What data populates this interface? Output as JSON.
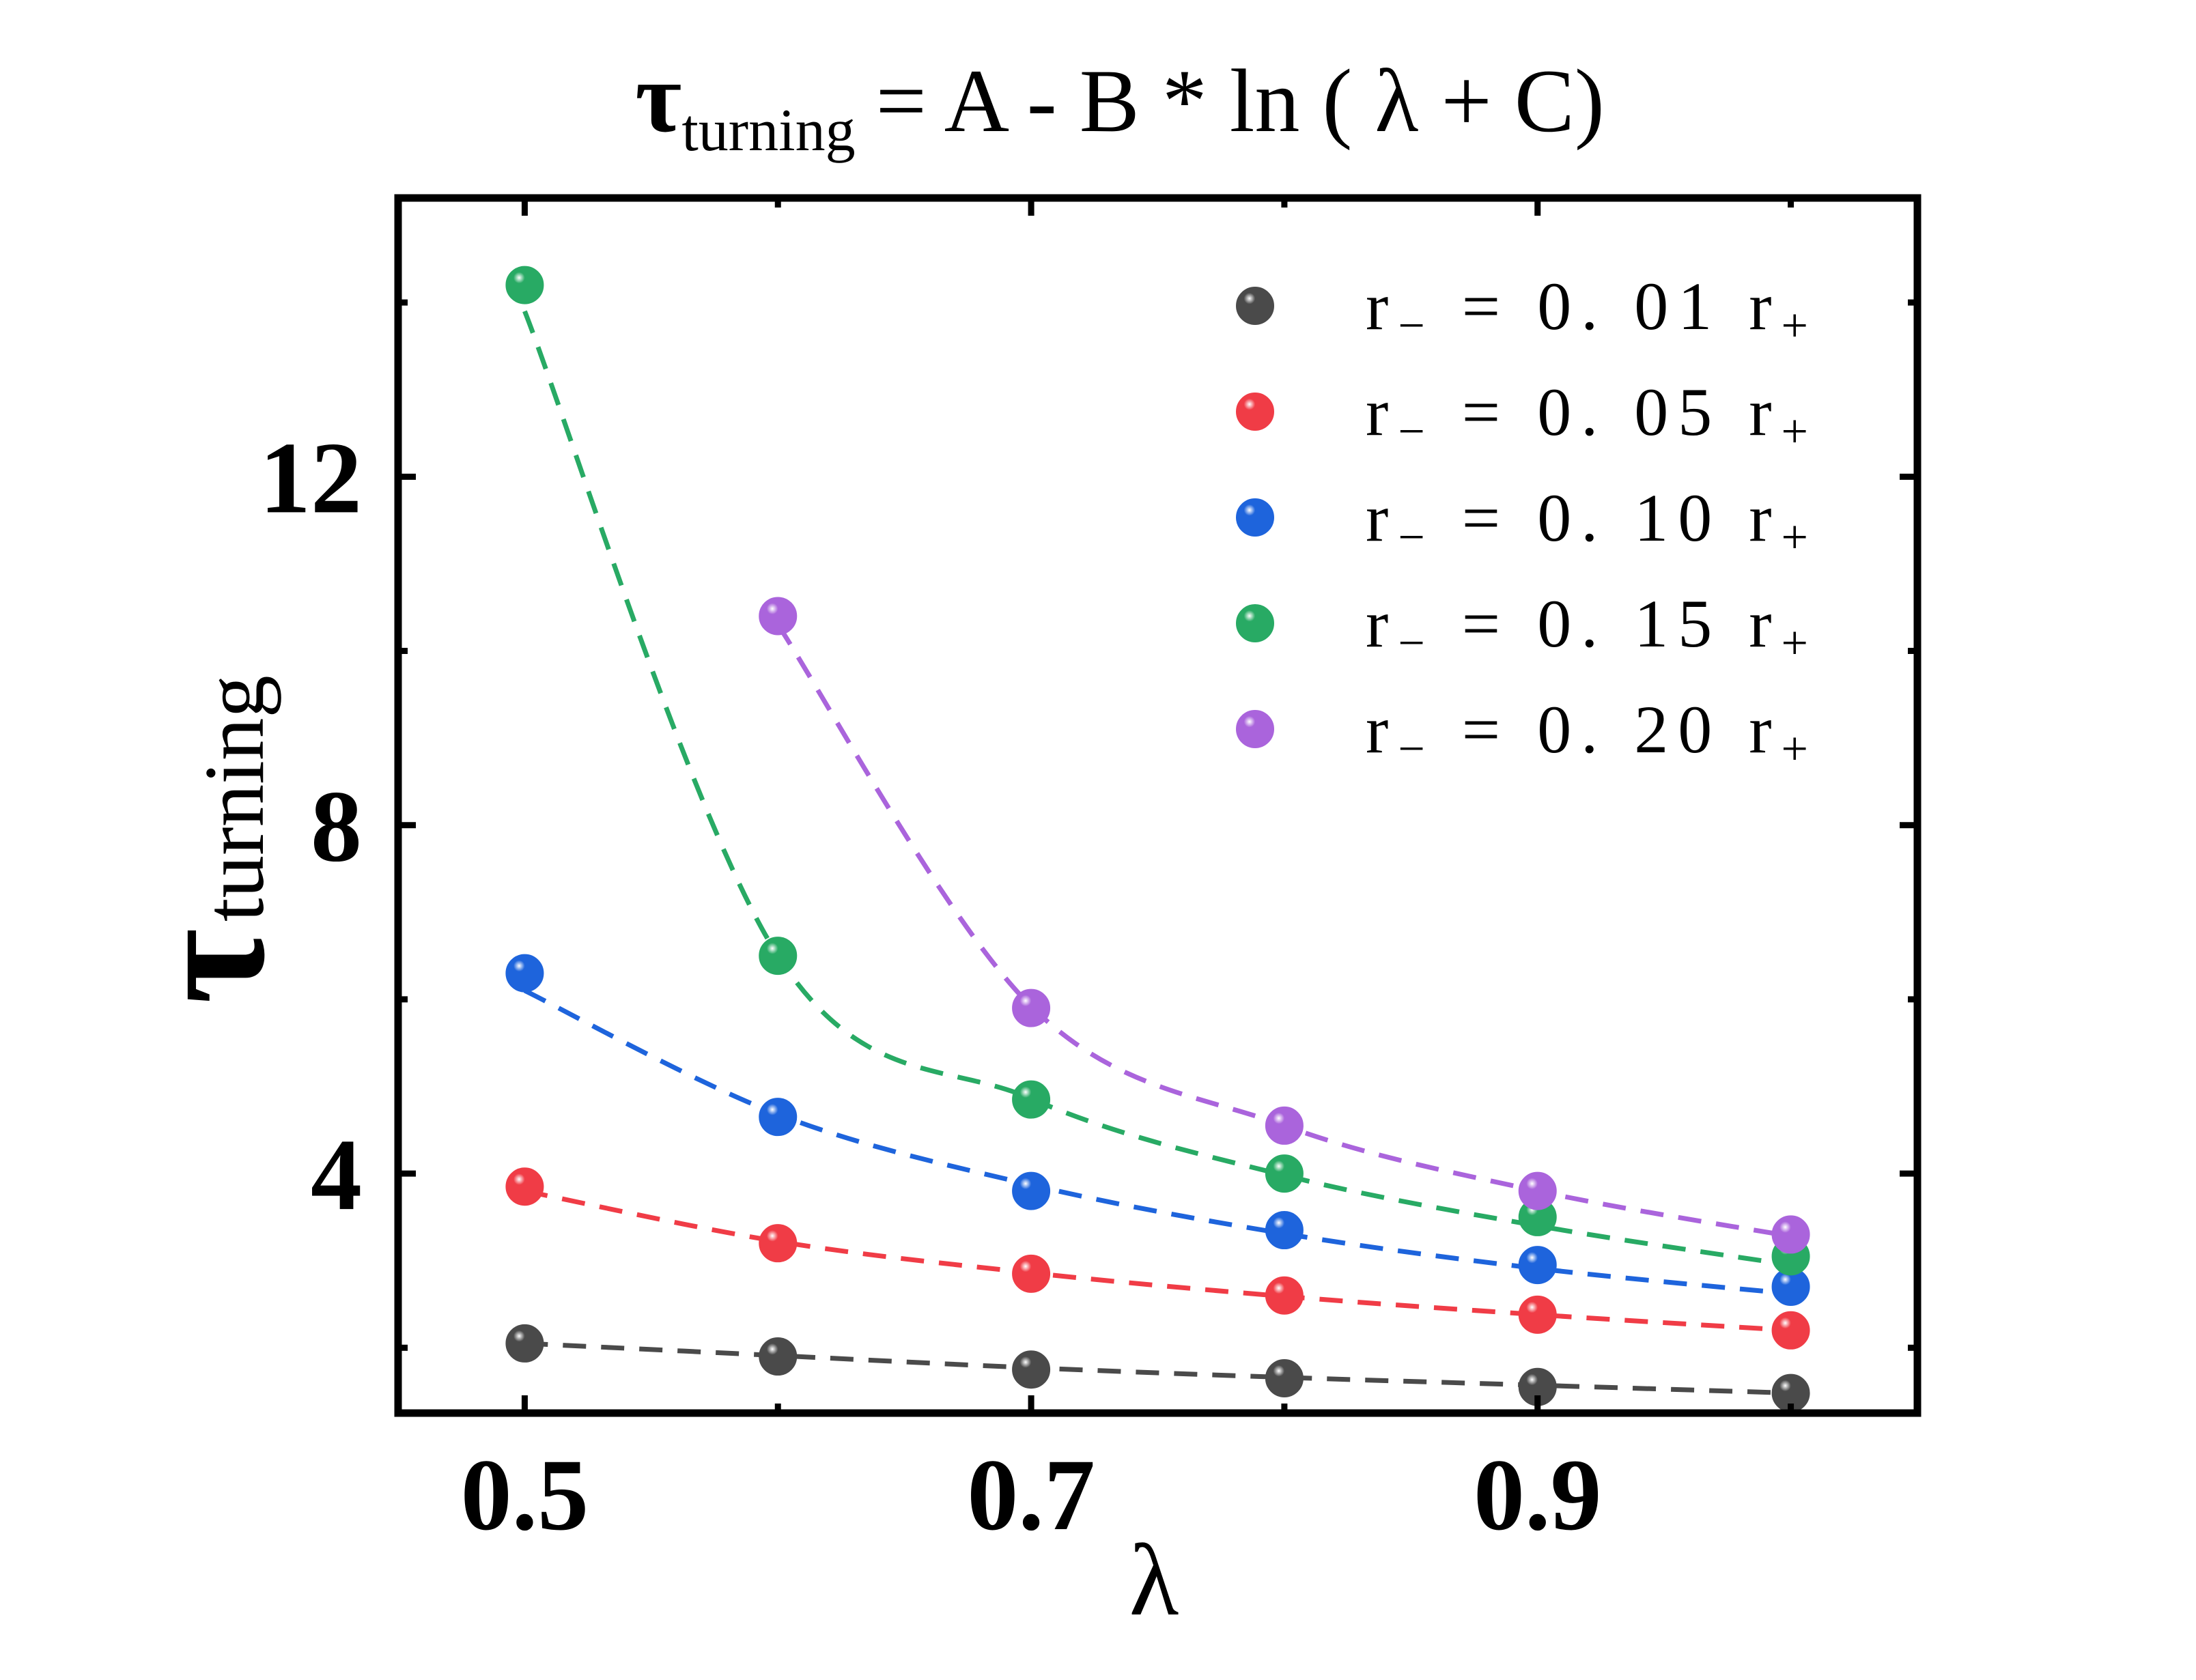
{
  "chart_data": {
    "type": "scatter",
    "title": {
      "symbol": "τ",
      "subscript": "turning",
      "equation": "= A - B * ln ( λ + C)"
    },
    "xlabel": "λ",
    "ylabel": {
      "symbol": "τ",
      "subscript": "turning"
    },
    "xlim": [
      0.45,
      1.05
    ],
    "ylim": [
      1.25,
      15.2
    ],
    "xticks": [
      0.5,
      0.7,
      0.9
    ],
    "xtick_labels": [
      "0.5",
      "0.7",
      "0.9"
    ],
    "yticks": [
      4,
      8,
      12
    ],
    "ytick_labels": [
      "4",
      "8",
      "12"
    ],
    "grid": false,
    "legend_position": "top-right",
    "fit_line_style": "dashed",
    "series": [
      {
        "name": "r₋ = 0.01 r₊",
        "legend_parts": {
          "r_minus": "r",
          "minus_sub": "−",
          "eq": "=",
          "value": "0. 01",
          "r_plus": "r",
          "plus_sub": "+"
        },
        "color": "#4a4a4a",
        "x": [
          0.5,
          0.6,
          0.7,
          0.8,
          0.9,
          1.0
        ],
        "y": [
          2.05,
          1.9,
          1.75,
          1.65,
          1.55,
          1.48
        ],
        "fit_y": [
          2.05,
          1.91,
          1.77,
          1.66,
          1.57,
          1.48
        ]
      },
      {
        "name": "r₋ = 0.05 r₊",
        "legend_parts": {
          "r_minus": "r",
          "minus_sub": "−",
          "eq": "=",
          "value": "0. 05",
          "r_plus": "r",
          "plus_sub": "+"
        },
        "color": "#f03c46",
        "x": [
          0.5,
          0.6,
          0.7,
          0.8,
          0.9,
          1.0
        ],
        "y": [
          3.85,
          3.2,
          2.85,
          2.6,
          2.38,
          2.2
        ],
        "fit_y": [
          3.8,
          3.22,
          2.86,
          2.59,
          2.38,
          2.2
        ]
      },
      {
        "name": "r₋ = 0.10 r₊",
        "legend_parts": {
          "r_minus": "r",
          "minus_sub": "−",
          "eq": "=",
          "value": "0. 10",
          "r_plus": "r",
          "plus_sub": "+"
        },
        "color": "#1e64dc",
        "x": [
          0.5,
          0.6,
          0.7,
          0.8,
          0.9,
          1.0
        ],
        "y": [
          6.3,
          4.65,
          3.8,
          3.35,
          2.95,
          2.7
        ],
        "fit_y": [
          6.1,
          4.68,
          3.87,
          3.31,
          2.91,
          2.62
        ]
      },
      {
        "name": "r₋ = 0.15 r₊",
        "legend_parts": {
          "r_minus": "r",
          "minus_sub": "−",
          "eq": "=",
          "value": "0. 15",
          "r_plus": "r",
          "plus_sub": "+"
        },
        "color": "#28aa64",
        "x": [
          0.5,
          0.6,
          0.7,
          0.8,
          0.9,
          1.0
        ],
        "y": [
          14.2,
          6.5,
          4.85,
          4.0,
          3.5,
          3.05
        ],
        "fit_y": [
          13.9,
          6.5,
          4.86,
          3.98,
          3.4,
          2.95
        ]
      },
      {
        "name": "r₋ = 0.20 r₊",
        "legend_parts": {
          "r_minus": "r",
          "minus_sub": "−",
          "eq": "=",
          "value": "0. 20",
          "r_plus": "r",
          "plus_sub": "+"
        },
        "color": "#aa64dc",
        "x": [
          0.6,
          0.7,
          0.8,
          0.9,
          1.0
        ],
        "y": [
          10.4,
          5.9,
          4.55,
          3.8,
          3.3
        ],
        "fit_y": [
          10.3,
          5.92,
          4.55,
          3.8,
          3.28
        ]
      }
    ]
  }
}
